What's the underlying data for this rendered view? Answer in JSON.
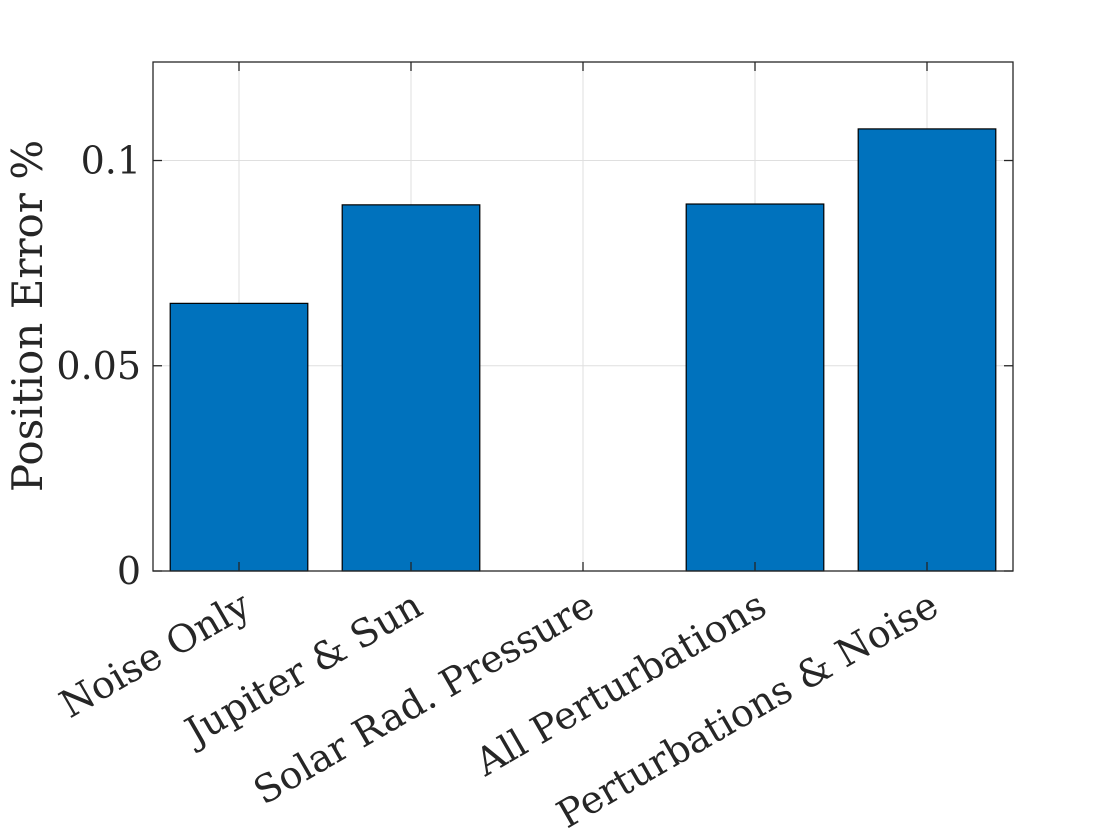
{
  "chart_data": {
    "type": "bar",
    "title": "",
    "xlabel": "",
    "ylabel": "Position Error %",
    "categories": [
      "Noise Only",
      "Jupiter & Sun",
      "Solar Rad. Pressure",
      "All Perturbations",
      "Perturbations & Noise"
    ],
    "values": [
      0.0652,
      0.0892,
      0.0,
      0.0894,
      0.1077
    ],
    "ylim": [
      0,
      0.124
    ],
    "yticks": [
      0,
      0.05,
      0.1
    ],
    "ytick_labels": [
      "0",
      "0.05",
      "0.1"
    ],
    "grid": true,
    "bar_color": "#0072BD",
    "edge_color": "#000000"
  }
}
